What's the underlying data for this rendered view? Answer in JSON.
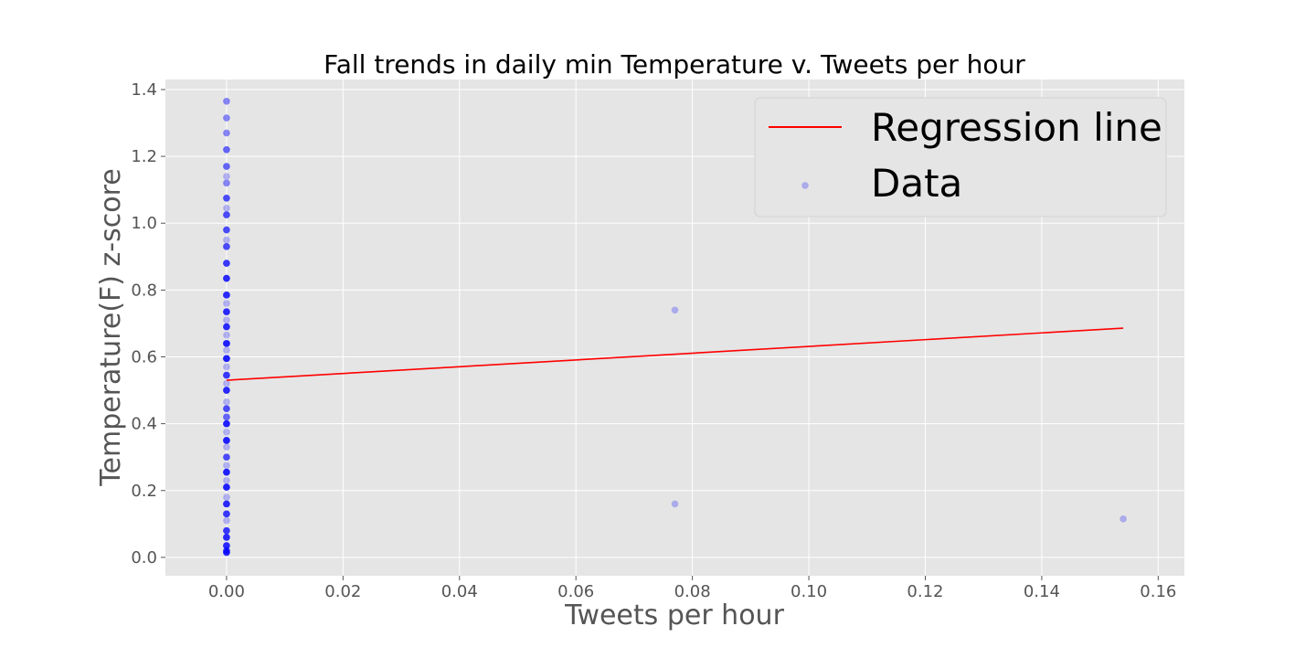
{
  "chart_data": {
    "type": "scatter",
    "title": "Fall trends in daily min Temperature v. Tweets per hour",
    "xlabel": "Tweets per hour",
    "ylabel": "Temperature(F) z-score",
    "xlim": [
      -0.0105,
      0.1645
    ],
    "ylim": [
      -0.055,
      1.43
    ],
    "xticks": [
      0.0,
      0.02,
      0.04,
      0.06,
      0.08,
      0.1,
      0.12,
      0.14,
      0.16
    ],
    "xtick_labels": [
      "0.00",
      "0.02",
      "0.04",
      "0.06",
      "0.08",
      "0.10",
      "0.12",
      "0.14",
      "0.16"
    ],
    "yticks": [
      0.0,
      0.2,
      0.4,
      0.6,
      0.8,
      1.0,
      1.2,
      1.4
    ],
    "ytick_labels": [
      "0.0",
      "0.2",
      "0.4",
      "0.6",
      "0.8",
      "1.0",
      "1.2",
      "1.4"
    ],
    "grid": true,
    "legend_position": "top-right",
    "colors": {
      "background": "#e5e5e5",
      "grid": "#ffffff",
      "regression": "#ff0000",
      "points": "#0000ff"
    },
    "series": [
      {
        "name": "Regression line",
        "kind": "line",
        "x": [
          0.0,
          0.154
        ],
        "y": [
          0.53,
          0.686
        ]
      },
      {
        "name": "Data",
        "kind": "scatter",
        "point_opacity": 0.25,
        "x": [
          0,
          0,
          0,
          0,
          0,
          0,
          0,
          0,
          0,
          0,
          0,
          0,
          0,
          0,
          0,
          0,
          0,
          0,
          0,
          0,
          0,
          0,
          0,
          0,
          0,
          0,
          0,
          0,
          0,
          0,
          0,
          0,
          0,
          0,
          0,
          0,
          0,
          0,
          0,
          0,
          0,
          0,
          0,
          0,
          0,
          0,
          0,
          0,
          0,
          0,
          0,
          0,
          0,
          0,
          0,
          0,
          0,
          0,
          0,
          0,
          0,
          0,
          0,
          0,
          0,
          0,
          0,
          0,
          0,
          0,
          0,
          0,
          0,
          0,
          0,
          0,
          0,
          0,
          0,
          0,
          0,
          0,
          0,
          0,
          0,
          0,
          0,
          0,
          0,
          0,
          0,
          0,
          0,
          0,
          0,
          0,
          0,
          0,
          0,
          0,
          0,
          0,
          0,
          0,
          0,
          0,
          0,
          0,
          0,
          0,
          0,
          0,
          0,
          0,
          0,
          0,
          0,
          0,
          0,
          0,
          0,
          0,
          0,
          0,
          0,
          0,
          0,
          0,
          0,
          0,
          0,
          0,
          0,
          0,
          0,
          0,
          0,
          0,
          0,
          0,
          0,
          0,
          0,
          0,
          0,
          0,
          0,
          0,
          0,
          0,
          0,
          0,
          0,
          0,
          0,
          0,
          0,
          0,
          0,
          0,
          0,
          0,
          0,
          0,
          0,
          0,
          0,
          0,
          0,
          0,
          0,
          0,
          0,
          0,
          0,
          0,
          0,
          0.077,
          0.077,
          0.154
        ],
        "y": [
          1.365,
          1.315,
          1.27,
          1.22,
          1.22,
          1.17,
          1.17,
          1.14,
          1.12,
          1.12,
          1.075,
          1.075,
          1.075,
          1.045,
          1.025,
          1.025,
          1.025,
          0.98,
          0.98,
          0.98,
          0.95,
          0.93,
          0.93,
          0.93,
          0.88,
          0.88,
          0.88,
          0.88,
          0.835,
          0.835,
          0.835,
          0.835,
          0.835,
          0.785,
          0.785,
          0.785,
          0.785,
          0.785,
          0.76,
          0.735,
          0.735,
          0.735,
          0.735,
          0.735,
          0.71,
          0.69,
          0.69,
          0.69,
          0.69,
          0.69,
          0.665,
          0.64,
          0.64,
          0.64,
          0.64,
          0.64,
          0.64,
          0.62,
          0.595,
          0.595,
          0.595,
          0.595,
          0.595,
          0.595,
          0.57,
          0.545,
          0.545,
          0.545,
          0.545,
          0.52,
          0.5,
          0.5,
          0.5,
          0.5,
          0.5,
          0.465,
          0.445,
          0.445,
          0.445,
          0.42,
          0.42,
          0.42,
          0.4,
          0.4,
          0.4,
          0.4,
          0.4,
          0.4,
          0.375,
          0.35,
          0.35,
          0.35,
          0.35,
          0.35,
          0.35,
          0.33,
          0.3,
          0.3,
          0.3,
          0.275,
          0.255,
          0.255,
          0.255,
          0.255,
          0.255,
          0.255,
          0.23,
          0.21,
          0.21,
          0.21,
          0.21,
          0.21,
          0.21,
          0.18,
          0.16,
          0.16,
          0.16,
          0.16,
          0.16,
          0.13,
          0.13,
          0.13,
          0.13,
          0.11,
          0.08,
          0.08,
          0.08,
          0.08,
          0.06,
          0.06,
          0.06,
          0.06,
          0.06,
          0.035,
          0.035,
          0.035,
          0.035,
          0.035,
          0.02,
          0.02,
          0.02,
          0.02,
          0.015,
          0.015,
          0.015,
          0.015,
          0.015,
          1.365,
          1.315,
          1.27,
          1.22,
          1.17,
          1.075,
          1.025,
          0.98,
          0.93,
          0.88,
          0.835,
          0.785,
          0.735,
          0.69,
          0.64,
          0.595,
          0.5,
          0.4,
          0.35,
          0.255,
          0.21,
          0.16,
          0.06,
          0.035,
          0.545,
          0.445,
          0.3,
          0.13,
          0.08,
          0.015,
          0.74,
          0.16,
          0.115
        ]
      }
    ]
  }
}
